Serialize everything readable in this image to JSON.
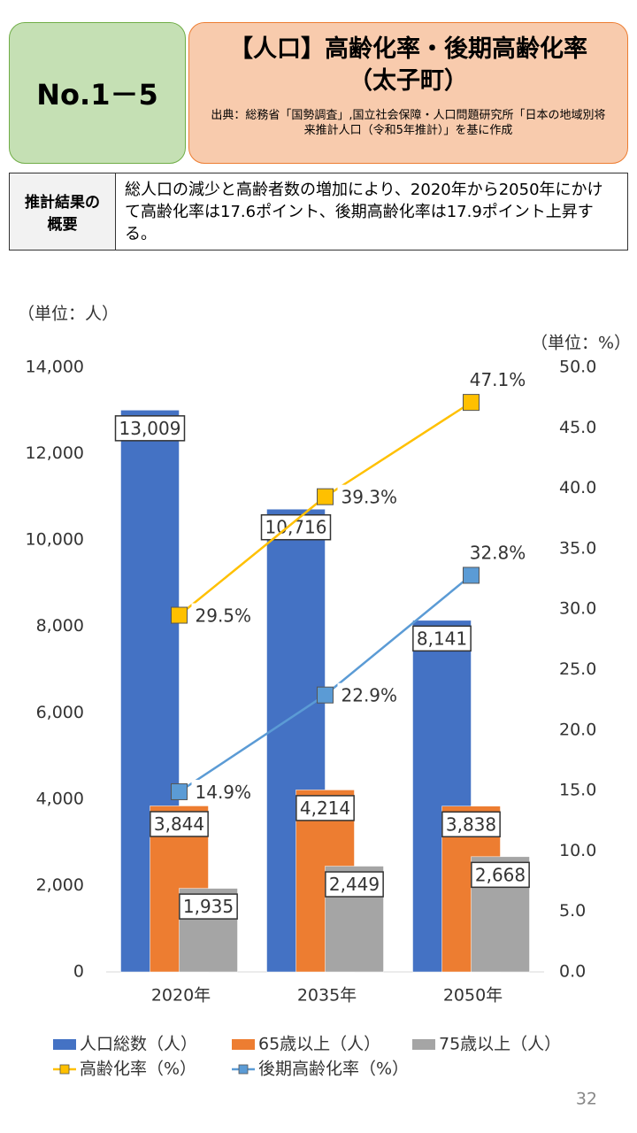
{
  "header": {
    "badge": "No.1－5",
    "title": [
      "【人口】高齢化率・後期高齢化率",
      "（太子町）"
    ],
    "source": "出典：総務省「国勢調査」,国立社会保障・人口問題研究所「日本の地域別将来推計人口（令和5年推計）」を基に作成"
  },
  "summary": {
    "label": "推計結果の概要",
    "text": "総人口の減少と高齢者数の増加により、2020年から2050年にかけて高齢化率は17.6ポイント、後期高齢化率は17.9ポイント上昇する。"
  },
  "page_number": "32",
  "chart_data": {
    "type": "bar_line",
    "y_unit_label": "（単位：人）",
    "y2_unit_label": "（単位：%）",
    "categories": [
      "2020年",
      "2035年",
      "2050年"
    ],
    "ylim": [
      0,
      14000
    ],
    "yticks": [
      0,
      {
        "value": 2000,
        "label": "2,000"
      },
      {
        "value": 4000,
        "label": "4,000"
      },
      {
        "value": 6000,
        "label": "6,000"
      },
      {
        "value": 8000,
        "label": "8,000"
      },
      {
        "value": 10000,
        "label": "10,000"
      },
      {
        "value": 12000,
        "label": "12,000"
      },
      {
        "value": 14000,
        "label": "14,000"
      }
    ],
    "y2lim": [
      0,
      50
    ],
    "y2ticks": [
      {
        "value": 0,
        "label": "0.0"
      },
      {
        "value": 5,
        "label": "5.0"
      },
      {
        "value": 10,
        "label": "10.0"
      },
      {
        "value": 15,
        "label": "15.0"
      },
      {
        "value": 20,
        "label": "20.0"
      },
      {
        "value": 25,
        "label": "25.0"
      },
      {
        "value": 30,
        "label": "30.0"
      },
      {
        "value": 35,
        "label": "35.0"
      },
      {
        "value": 40,
        "label": "40.0"
      },
      {
        "value": 45,
        "label": "45.0"
      },
      {
        "value": 50,
        "label": "50.0"
      }
    ],
    "grid": false,
    "series": [
      {
        "name": "人口総数（人）",
        "type": "bar",
        "color": "#4472c4",
        "values": [
          13009,
          10716,
          8141
        ],
        "value_labels": [
          "13,009",
          "10,716",
          "8,141"
        ]
      },
      {
        "name": "65歳以上（人）",
        "type": "bar",
        "color": "#ed7d31",
        "values": [
          3844,
          4214,
          3838
        ],
        "value_labels": [
          "3,844",
          "4,214",
          "3,838"
        ]
      },
      {
        "name": "75歳以上（人）",
        "type": "bar",
        "color": "#a5a5a5",
        "values": [
          1935,
          2449,
          2668
        ],
        "value_labels": [
          "1,935",
          "2,449",
          "2,668"
        ]
      },
      {
        "name": "高齢化率（%）",
        "type": "line",
        "axis": "y2",
        "color": "#ffc000",
        "values": [
          29.5,
          39.3,
          47.1
        ],
        "value_labels": [
          "29.5%",
          "39.3%",
          "47.1%"
        ]
      },
      {
        "name": "後期高齢化率（%）",
        "type": "line",
        "axis": "y2",
        "color": "#5b9bd5",
        "values": [
          14.9,
          22.9,
          32.8
        ],
        "value_labels": [
          "14.9%",
          "22.9%",
          "32.8%"
        ]
      }
    ]
  }
}
